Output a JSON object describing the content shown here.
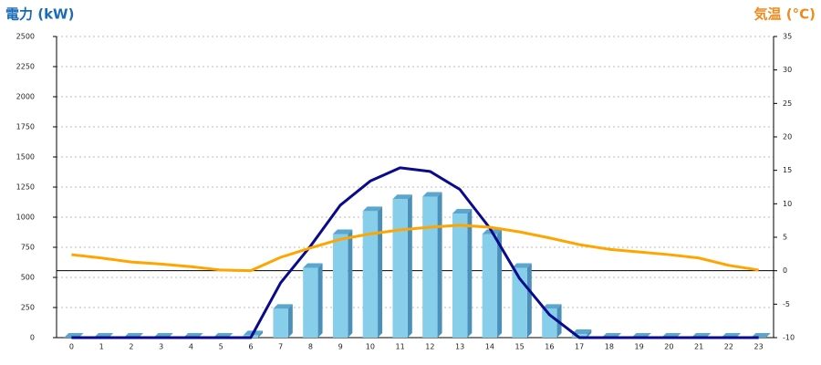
{
  "chart_data": {
    "type": "bar-line",
    "y_title": "電力 (kW)",
    "y2_title": "気温 (°C)",
    "categories": [
      "0",
      "1",
      "2",
      "3",
      "4",
      "5",
      "6",
      "7",
      "8",
      "9",
      "10",
      "11",
      "12",
      "13",
      "14",
      "15",
      "16",
      "17",
      "18",
      "19",
      "20",
      "21",
      "22",
      "23"
    ],
    "series": [
      {
        "type": "bar",
        "color": "#87ceeb",
        "values": [
          0,
          0,
          0,
          0,
          0,
          0,
          20,
          240,
          580,
          860,
          1050,
          1150,
          1170,
          1030,
          860,
          580,
          240,
          30,
          0,
          0,
          0,
          0,
          0,
          0
        ]
      },
      {
        "type": "line",
        "color": "#0a0a8c",
        "values": [
          0,
          0,
          0,
          0,
          0,
          0,
          0,
          455,
          760,
          1100,
          1300,
          1410,
          1380,
          1230,
          910,
          490,
          190,
          0,
          0,
          0,
          0,
          0,
          0,
          0
        ]
      },
      {
        "type": "line",
        "color": "#ffa500",
        "axis": "y2",
        "values": [
          2.4,
          1.9,
          1.3,
          1.0,
          0.6,
          0.1,
          0,
          2.0,
          3.4,
          4.7,
          5.5,
          6.1,
          6.5,
          6.8,
          6.5,
          5.8,
          4.9,
          3.9,
          3.2,
          2.8,
          2.4,
          1.9,
          0.8,
          0.1
        ]
      }
    ],
    "ylim": [
      0,
      2500
    ],
    "yticks": [
      0,
      250,
      500,
      750,
      1000,
      1250,
      1500,
      1750,
      2000,
      2250,
      2500
    ],
    "y2lim": [
      -10,
      35
    ],
    "y2ticks": [
      -10,
      -5,
      0,
      5,
      10,
      15,
      20,
      25,
      30,
      35
    ],
    "grid": true
  }
}
